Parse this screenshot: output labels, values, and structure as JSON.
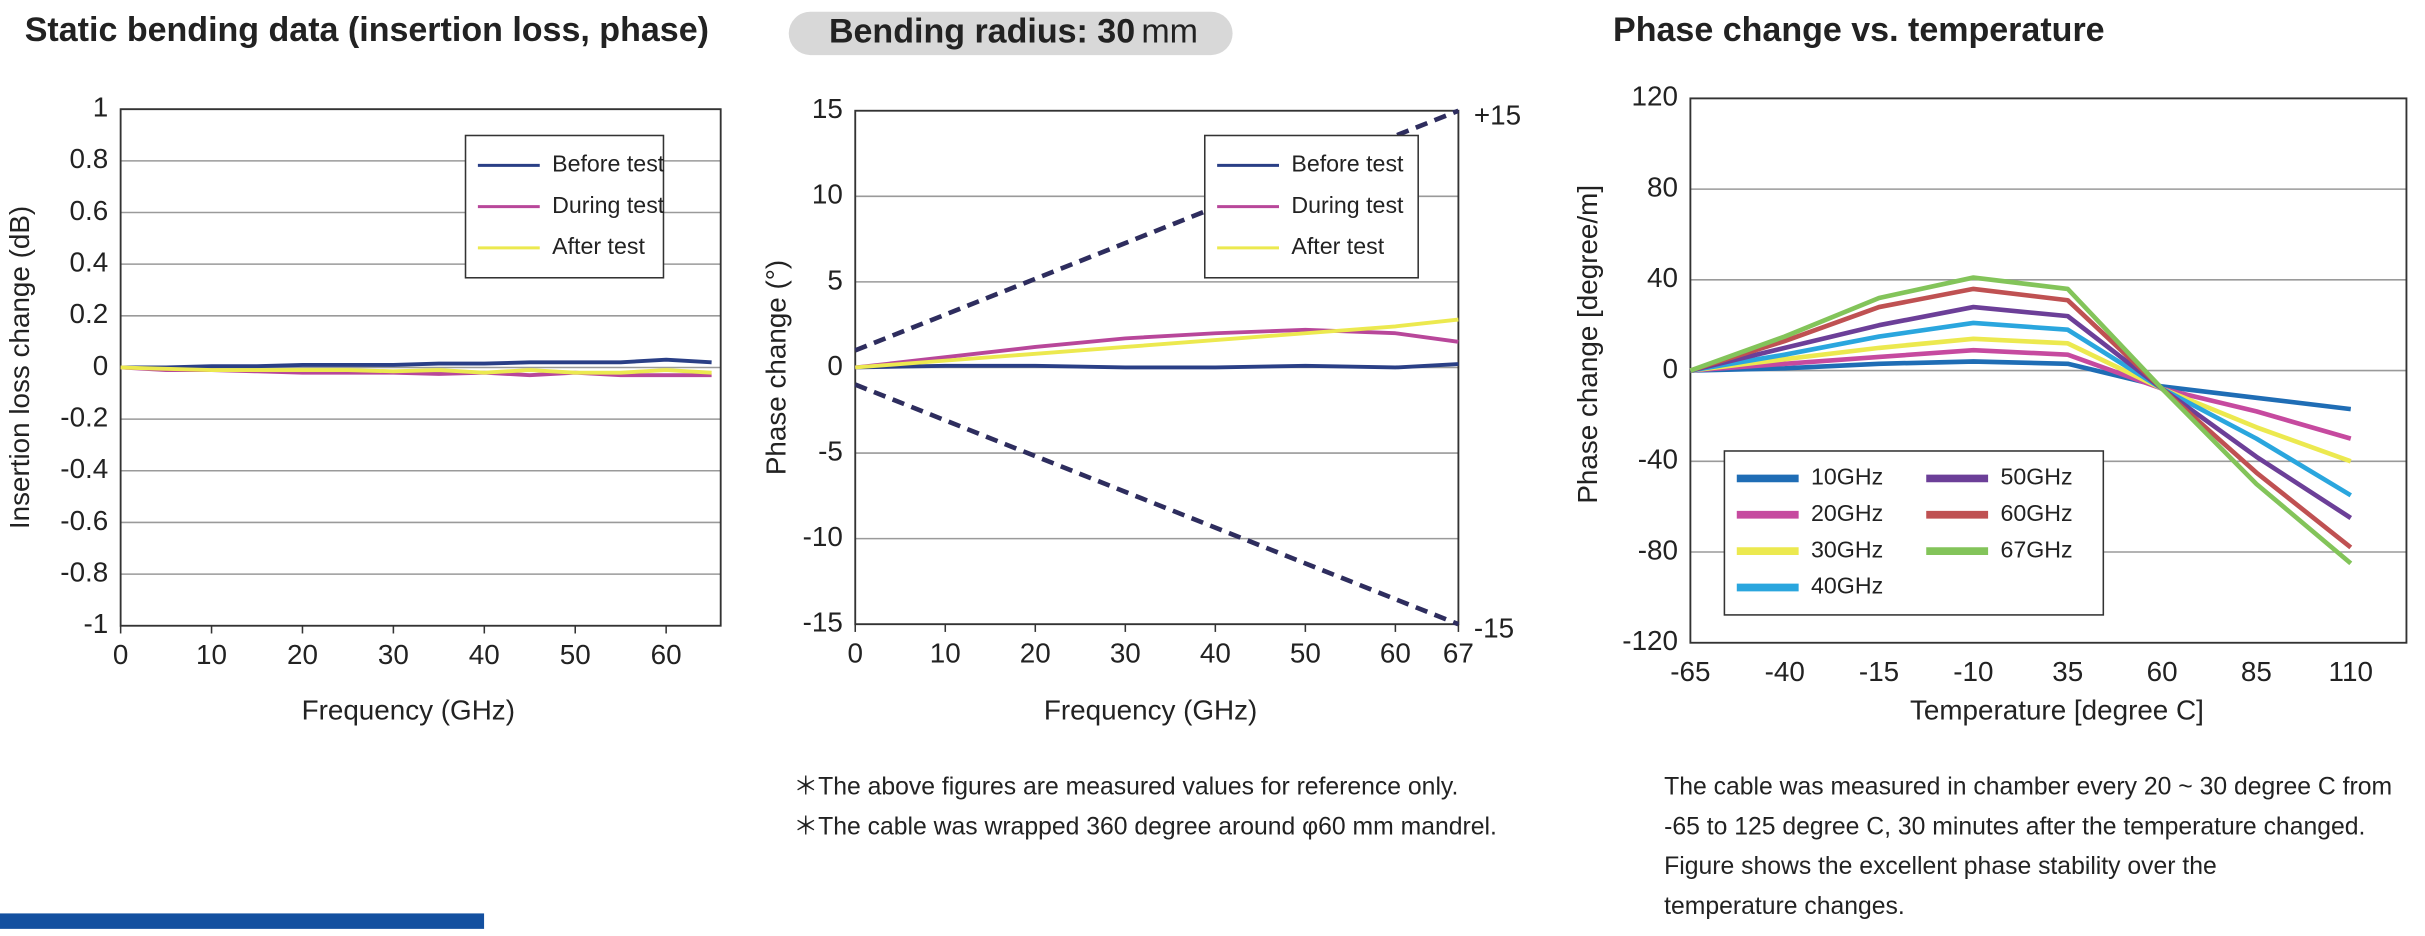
{
  "chart_data": [
    {
      "type": "line",
      "title": "Static bending data (insertion loss, phase)",
      "x_label": "Frequency (GHz)",
      "y_label": "Insertion loss change (dB)",
      "x": [
        0,
        5,
        10,
        15,
        20,
        25,
        30,
        35,
        40,
        45,
        50,
        55,
        60,
        65
      ],
      "xlim": [
        0,
        66
      ],
      "xticks": [
        0,
        10,
        20,
        30,
        40,
        50,
        60
      ],
      "ylim": [
        -1,
        1
      ],
      "yticks": [
        -1,
        -0.8,
        -0.6,
        -0.4,
        -0.2,
        0,
        0.2,
        0.4,
        0.6,
        0.8,
        1
      ],
      "grid": true,
      "legend": "upper right",
      "series": [
        {
          "name": "Before test",
          "color": "#2a3f86",
          "values": [
            0,
            0,
            0.005,
            0.005,
            0.01,
            0.01,
            0.01,
            0.015,
            0.015,
            0.02,
            0.02,
            0.02,
            0.03,
            0.02
          ]
        },
        {
          "name": "During test",
          "color": "#b8479a",
          "values": [
            0,
            -0.01,
            -0.01,
            -0.015,
            -0.02,
            -0.02,
            -0.02,
            -0.025,
            -0.02,
            -0.03,
            -0.02,
            -0.03,
            -0.03,
            -0.03
          ]
        },
        {
          "name": "After test",
          "color": "#ece94f",
          "values": [
            0,
            -0.005,
            -0.01,
            -0.01,
            -0.01,
            -0.01,
            -0.015,
            -0.01,
            -0.02,
            -0.01,
            -0.02,
            -0.02,
            -0.01,
            -0.02
          ]
        }
      ]
    },
    {
      "type": "line",
      "title": "Bending radius: 30",
      "title_unit": "mm",
      "x_label": "Frequency (GHz)",
      "y_label": "Phase change (°)",
      "x": [
        0,
        10,
        20,
        30,
        40,
        50,
        60,
        67
      ],
      "xlim": [
        0,
        67
      ],
      "xticks": [
        0,
        10,
        20,
        30,
        40,
        50,
        60,
        67
      ],
      "ylim": [
        -15,
        15
      ],
      "yticks": [
        -15,
        -10,
        -5,
        0,
        5,
        10,
        15
      ],
      "grid": true,
      "legend": "upper right",
      "series": [
        {
          "name": "Before test",
          "color": "#2a3f86",
          "values": [
            0,
            0.1,
            0.1,
            0,
            0,
            0.1,
            0,
            0.2
          ]
        },
        {
          "name": "During test",
          "color": "#b8479a",
          "values": [
            0,
            0.6,
            1.2,
            1.7,
            2.0,
            2.2,
            2.0,
            1.5
          ]
        },
        {
          "name": "After test",
          "color": "#ece94f",
          "values": [
            0,
            0.4,
            0.8,
            1.2,
            1.6,
            2.0,
            2.4,
            2.8
          ]
        }
      ],
      "limit_lines": [
        {
          "x": [
            0,
            67
          ],
          "values": [
            1,
            15
          ],
          "label": "+15",
          "color": "#2e2d5e"
        },
        {
          "x": [
            0,
            67
          ],
          "values": [
            -1,
            -15
          ],
          "label": "-15",
          "color": "#2e2d5e"
        }
      ],
      "notes": [
        "＊The above figures are measured values for reference only.",
        "＊The cable was wrapped 360 degree around φ60 mm mandrel."
      ]
    },
    {
      "type": "line",
      "title": "Phase change vs. temperature",
      "x_label": "Temperature [degree C]",
      "y_label": "Phase change [degree/m]",
      "categories": [
        "-65",
        "-40",
        "-15",
        "-10",
        "35",
        "60",
        "85",
        "110"
      ],
      "ylim": [
        -120,
        120
      ],
      "yticks": [
        -120,
        -80,
        -40,
        0,
        40,
        80,
        120
      ],
      "grid": true,
      "legend": "lower left",
      "series": [
        {
          "name": "10GHz",
          "color": "#1f6db5",
          "values": [
            0,
            1,
            3,
            4,
            3,
            -7,
            -12,
            -17
          ]
        },
        {
          "name": "20GHz",
          "color": "#c64a9f",
          "values": [
            0,
            3,
            6,
            9,
            7,
            -8,
            -18,
            -30
          ]
        },
        {
          "name": "30GHz",
          "color": "#ece94f",
          "values": [
            0,
            5,
            10,
            14,
            12,
            -8,
            -25,
            -40
          ]
        },
        {
          "name": "40GHz",
          "color": "#2aa6de",
          "values": [
            0,
            7,
            15,
            21,
            18,
            -8,
            -30,
            -55
          ]
        },
        {
          "name": "50GHz",
          "color": "#6c3f98",
          "values": [
            0,
            10,
            20,
            28,
            24,
            -8,
            -38,
            -65
          ]
        },
        {
          "name": "60GHz",
          "color": "#bf5152",
          "values": [
            0,
            13,
            28,
            36,
            31,
            -8,
            -45,
            -78
          ]
        },
        {
          "name": "67GHz",
          "color": "#83c45a",
          "values": [
            0,
            15,
            32,
            41,
            36,
            -8,
            -50,
            -85
          ]
        }
      ],
      "notes": [
        "The cable was measured in chamber every 20 ~ 30 degree C from",
        "-65 to 125 degree C, 30 minutes after the temperature changed.",
        "Figure shows the excellent phase stability over the",
        "temperature changes."
      ]
    }
  ]
}
